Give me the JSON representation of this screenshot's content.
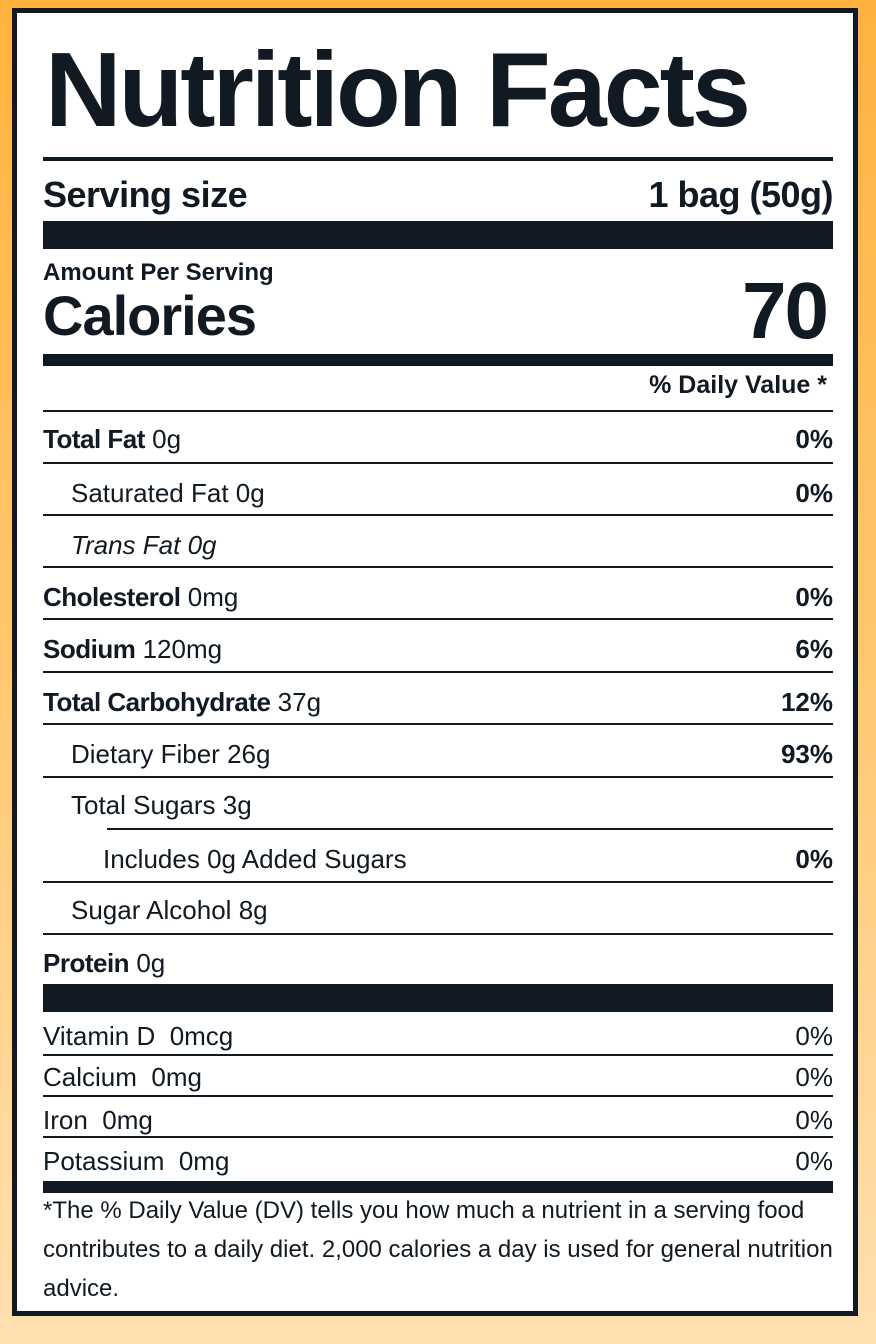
{
  "label": {
    "title": "Nutrition Facts",
    "serving_size_label": "Serving size",
    "serving_size_value": "1 bag (50g)",
    "amount_per_serving": "Amount Per Serving",
    "calories_label": "Calories",
    "calories_value": "70",
    "daily_value_header": "% Daily Value *"
  },
  "nutrients": {
    "total_fat": {
      "name": "Total Fat",
      "amount": "0g",
      "dv": "0%"
    },
    "saturated_fat": {
      "name": "Saturated Fat",
      "amount": "0g",
      "dv": "0%"
    },
    "trans_fat": {
      "name": "Trans Fat",
      "amount": "0g"
    },
    "cholesterol": {
      "name": "Cholesterol",
      "amount": "0mg",
      "dv": "0%"
    },
    "sodium": {
      "name": "Sodium",
      "amount": "120mg",
      "dv": "6%"
    },
    "total_carb": {
      "name": "Total Carbohydrate",
      "amount": "37g",
      "dv": "12%"
    },
    "dietary_fiber": {
      "name": "Dietary Fiber",
      "amount": "26g",
      "dv": "93%"
    },
    "total_sugars": {
      "name": "Total Sugars",
      "amount": "3g"
    },
    "added_sugars": {
      "prefix": "Includes",
      "amount": "0g",
      "name": "Added Sugars",
      "dv": "0%"
    },
    "sugar_alcohol": {
      "name": "Sugar Alcohol",
      "amount": "8g"
    },
    "protein": {
      "name": "Protein",
      "amount": "0g"
    }
  },
  "vitamins": {
    "vitamin_d": {
      "name": "Vitamin D",
      "amount": "0mcg",
      "dv": "0%"
    },
    "calcium": {
      "name": "Calcium",
      "amount": "0mg",
      "dv": "0%"
    },
    "iron": {
      "name": "Iron",
      "amount": "0mg",
      "dv": "0%"
    },
    "potassium": {
      "name": "Potassium",
      "amount": "0mg",
      "dv": "0%"
    }
  },
  "footnote": "*The % Daily Value (DV) tells you how much a nutrient in a serving food contributes to a daily diet. 2,000 calories a day is used for general nutrition advice.",
  "colors": {
    "ink": "#111a22",
    "background_top": "#ffb23e",
    "background_bottom": "#ffe0b0",
    "panel": "#ffffff"
  }
}
